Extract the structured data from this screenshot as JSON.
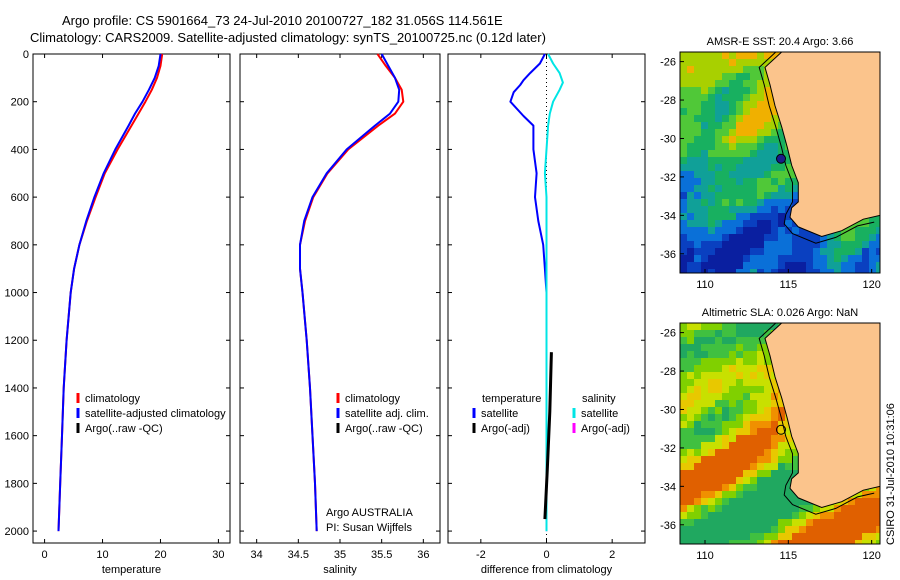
{
  "header": {
    "line1": "Argo profile: CS 5901664_73 24-Jul-2010 20100727_182 31.056S 114.561E",
    "line2": "Climatology: CARS2009. Satellite-adjusted climatology: synTS_20100725.nc (0.12d later)"
  },
  "side_label": "CSIRO 31-Jul-2010 10:31:06",
  "colors": {
    "climatology": "#ff0000",
    "satellite": "#0000ff",
    "argo": "#000000",
    "sal_satellite": "#00e5e5",
    "sal_argo": "#ff00ff",
    "land": "#fbc48c"
  },
  "chart_data": [
    {
      "type": "line",
      "xlabel": "temperature",
      "xlim": [
        -2,
        32
      ],
      "ylim": [
        2050,
        0
      ],
      "xticks": [
        "0",
        "10",
        "20",
        "30"
      ],
      "yticks": [
        "0",
        "200",
        "400",
        "600",
        "800",
        "1000",
        "1200",
        "1400",
        "1600",
        "1800",
        "2000"
      ],
      "legend": [
        "climatology",
        "satellite-adjusted climatology",
        "Argo(..raw -QC)"
      ],
      "series": [
        {
          "name": "climatology",
          "depth": [
            0,
            50,
            100,
            150,
            200,
            250,
            300,
            400,
            500,
            600,
            700,
            800,
            900,
            1000,
            1200,
            1400,
            1600,
            1800,
            2000
          ],
          "values": [
            20.3,
            20.0,
            19.4,
            18.5,
            17.4,
            16.2,
            15.0,
            12.6,
            10.4,
            8.8,
            7.3,
            6.0,
            5.1,
            4.5,
            3.8,
            3.3,
            3.0,
            2.7,
            2.4
          ]
        },
        {
          "name": "satellite-adjusted climatology",
          "depth": [
            0,
            50,
            100,
            150,
            200,
            250,
            300,
            400,
            500,
            600,
            700,
            800,
            900,
            1000,
            1200,
            1400,
            1600,
            1800,
            2000
          ],
          "values": [
            20.0,
            19.7,
            19.0,
            18.0,
            16.9,
            15.6,
            14.5,
            12.2,
            10.2,
            8.6,
            7.2,
            6.0,
            5.1,
            4.5,
            3.8,
            3.3,
            3.0,
            2.7,
            2.4
          ]
        },
        {
          "name": "Argo(..raw -QC)",
          "depth": [],
          "values": []
        }
      ]
    },
    {
      "type": "line",
      "xlabel": "salinity",
      "xlim": [
        33.8,
        36.2
      ],
      "ylim": [
        2050,
        0
      ],
      "xticks": [
        "34",
        "34.5",
        "35",
        "35.5",
        "36"
      ],
      "legend": [
        "climatology",
        "satellite adj. clim.",
        "Argo(..raw -QC)"
      ],
      "annotation": [
        "Argo AUSTRALIA",
        "PI: Susan Wijffels"
      ],
      "series": [
        {
          "name": "climatology",
          "depth": [
            0,
            50,
            100,
            150,
            200,
            250,
            300,
            400,
            500,
            600,
            700,
            800,
            900,
            1000,
            1200,
            1400,
            1600,
            1800,
            2000
          ],
          "values": [
            35.45,
            35.55,
            35.66,
            35.74,
            35.76,
            35.66,
            35.46,
            35.1,
            34.85,
            34.68,
            34.58,
            34.52,
            34.52,
            34.55,
            34.6,
            34.64,
            34.67,
            34.7,
            34.72
          ]
        },
        {
          "name": "satellite adj. clim.",
          "depth": [
            0,
            50,
            100,
            150,
            200,
            250,
            300,
            400,
            500,
            600,
            700,
            800,
            900,
            1000,
            1200,
            1400,
            1600,
            1800,
            2000
          ],
          "values": [
            35.5,
            35.58,
            35.66,
            35.71,
            35.7,
            35.6,
            35.42,
            35.08,
            34.84,
            34.67,
            34.57,
            34.52,
            34.52,
            34.55,
            34.6,
            34.64,
            34.67,
            34.7,
            34.72
          ]
        },
        {
          "name": "Argo(..raw -QC)",
          "depth": [],
          "values": []
        }
      ]
    },
    {
      "type": "line",
      "xlabel": "difference from climatology",
      "xlim": [
        -3,
        3
      ],
      "ylim": [
        2050,
        0
      ],
      "xticks": [
        "-2",
        "0",
        "2"
      ],
      "legend_left": {
        "title": "temperature",
        "items": [
          "satellite",
          "Argo(-adj)"
        ]
      },
      "legend_right": {
        "title": "salinity",
        "items": [
          "satellite",
          "Argo(-adj)"
        ]
      },
      "series": [
        {
          "name": "temperature satellite",
          "depth": [
            0,
            40,
            80,
            110,
            130,
            160,
            200,
            260,
            300,
            400,
            500,
            600,
            700,
            800,
            900,
            1000,
            1200,
            1400,
            1600,
            1800,
            2000
          ],
          "values": [
            -0.05,
            -0.2,
            -0.5,
            -0.7,
            -0.8,
            -1.0,
            -1.1,
            -0.7,
            -0.4,
            -0.4,
            -0.3,
            -0.35,
            -0.25,
            -0.1,
            -0.05,
            0.0,
            0.0,
            0.0,
            0.0,
            0.0,
            0.0
          ]
        },
        {
          "name": "salinity satellite",
          "depth": [
            0,
            40,
            80,
            120,
            150,
            200,
            250,
            300,
            400,
            500,
            600,
            800,
            1000,
            1200,
            1400,
            1600,
            1800,
            2000
          ],
          "values": [
            0.05,
            0.2,
            0.4,
            0.5,
            0.4,
            0.2,
            0.1,
            0.05,
            0.0,
            -0.05,
            0.0,
            0.0,
            0.0,
            0.0,
            0.0,
            0.0,
            0.0,
            0.0
          ]
        },
        {
          "name": "Argo(-adj)",
          "depth": [
            1250,
            1500,
            1750,
            1950
          ],
          "values": [
            0.15,
            0.1,
            0.02,
            -0.05
          ]
        }
      ]
    },
    {
      "type": "heatmap",
      "title": "AMSR-E SST: 20.4 Argo: 3.66",
      "xticks": [
        "110",
        "115",
        "120"
      ],
      "yticks": [
        "-26",
        "-28",
        "-30",
        "-32",
        "-34",
        "-36"
      ],
      "xlim": [
        108.5,
        120.5
      ],
      "ylim": [
        -37,
        -25.5
      ],
      "float_position": [
        114.561,
        -31.056
      ]
    },
    {
      "type": "heatmap",
      "title": "Altimetric SLA: 0.026 Argo: NaN",
      "xticks": [
        "110",
        "115",
        "120"
      ],
      "yticks": [
        "-26",
        "-28",
        "-30",
        "-32",
        "-34",
        "-36"
      ],
      "xlim": [
        108.5,
        120.5
      ],
      "ylim": [
        -37,
        -25.5
      ],
      "float_position": [
        114.561,
        -31.056
      ]
    }
  ]
}
